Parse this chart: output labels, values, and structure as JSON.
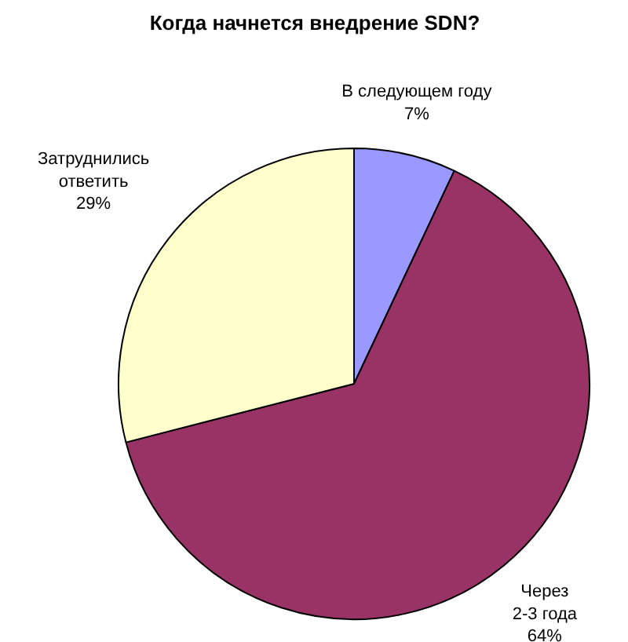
{
  "chart_data": {
    "type": "pie",
    "title": "Когда начнется внедрение SDN?",
    "categories": [
      "В следующем году",
      "Через\n2-3 года",
      "Затруднились\nответить"
    ],
    "values": [
      7,
      64,
      29
    ],
    "value_labels": [
      "7%",
      "64%",
      "29%"
    ],
    "colors": [
      "#9999ff",
      "#993366",
      "#ffffcc"
    ],
    "legend": false
  }
}
